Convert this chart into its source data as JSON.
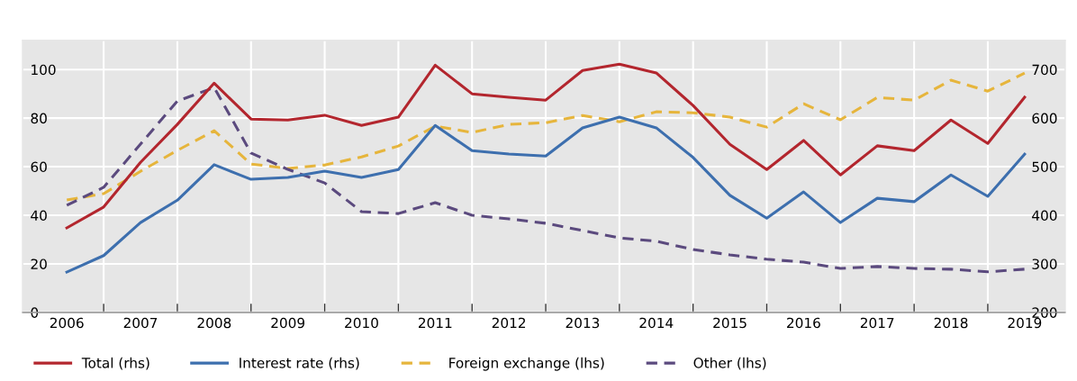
{
  "chart_data": {
    "type": "line",
    "x": [
      2006.5,
      2007,
      2007.5,
      2008,
      2008.5,
      2009,
      2009.5,
      2010,
      2010.5,
      2011,
      2011.5,
      2012,
      2012.5,
      2013,
      2013.5,
      2014,
      2014.5,
      2015,
      2015.5,
      2016,
      2016.5,
      2017,
      2017.5,
      2018,
      2018.5,
      2019,
      2019.5
    ],
    "series": [
      {
        "name": "Total (rhs)",
        "color": "#b3262e",
        "axis": "y2",
        "line_style": "solid",
        "values": [
          374,
          417,
          509,
          587,
          672,
          598,
          596,
          606,
          585,
          602,
          709,
          650,
          643,
          637,
          698,
          711,
          693,
          626,
          546,
          494,
          554,
          483,
          543,
          533,
          596,
          548,
          643
        ]
      },
      {
        "name": "Interest rate (rhs)",
        "color": "#3d6fae",
        "axis": "y2",
        "line_style": "solid",
        "values": [
          283,
          317,
          385,
          431,
          504,
          474,
          478,
          491,
          478,
          494,
          585,
          533,
          526,
          522,
          580,
          602,
          580,
          519,
          441,
          394,
          448,
          385,
          435,
          428,
          483,
          439,
          526
        ]
      },
      {
        "name": "Foreign exchange (lhs)",
        "color": "#e6b53c",
        "line_style": "dashed",
        "values": [
          46.3,
          48.9,
          58.1,
          66.7,
          74.8,
          61.1,
          59.3,
          60.7,
          64,
          68.5,
          76.7,
          74.1,
          77.4,
          78.1,
          81.1,
          78.5,
          82.6,
          82.2,
          80.4,
          76.3,
          85.9,
          79.3,
          88.5,
          87.4,
          95.6,
          91.1,
          98.5
        ]
      },
      {
        "name": "Other (lhs)",
        "color": "#5b4a7e",
        "line_style": "dashed",
        "values": [
          44.1,
          51.5,
          69.3,
          87,
          92.6,
          65.6,
          58.9,
          53.3,
          41.5,
          40.7,
          45.2,
          40,
          38.5,
          36.7,
          33.7,
          30.7,
          29.3,
          25.9,
          23.7,
          21.9,
          20.7,
          18.1,
          18.9,
          18.1,
          17.8,
          16.7,
          17.8
        ]
      }
    ],
    "xlim": [
      2005.9,
      2020.05
    ],
    "xticks": [
      {
        "value": 2006.5,
        "label": "2006"
      },
      {
        "value": 2007,
        "label": null
      },
      {
        "value": 2007.5,
        "label": "2007"
      },
      {
        "value": 2008,
        "label": null
      },
      {
        "value": 2008.5,
        "label": "2008"
      },
      {
        "value": 2009,
        "label": null
      },
      {
        "value": 2009.5,
        "label": "2009"
      },
      {
        "value": 2010,
        "label": null
      },
      {
        "value": 2010.5,
        "label": "2010"
      },
      {
        "value": 2011,
        "label": null
      },
      {
        "value": 2011.5,
        "label": "2011"
      },
      {
        "value": 2012,
        "label": null
      },
      {
        "value": 2012.5,
        "label": "2012"
      },
      {
        "value": 2013,
        "label": null
      },
      {
        "value": 2013.5,
        "label": "2013"
      },
      {
        "value": 2014,
        "label": null
      },
      {
        "value": 2014.5,
        "label": "2014"
      },
      {
        "value": 2015,
        "label": null
      },
      {
        "value": 2015.5,
        "label": "2015"
      },
      {
        "value": 2016,
        "label": null
      },
      {
        "value": 2016.5,
        "label": "2016"
      },
      {
        "value": 2017,
        "label": null
      },
      {
        "value": 2017.5,
        "label": "2017"
      },
      {
        "value": 2018,
        "label": null
      },
      {
        "value": 2018.5,
        "label": "2018"
      },
      {
        "value": 2019,
        "label": null
      },
      {
        "value": 2019.5,
        "label": "2019"
      }
    ],
    "ylim": [
      0,
      112
    ],
    "yticks": [
      0,
      20,
      40,
      60,
      80,
      100
    ],
    "y2lim": [
      200,
      760
    ],
    "y2ticks": [
      200,
      300,
      400,
      500,
      600,
      700
    ],
    "grid": true,
    "legend": "bottom",
    "marker": "none"
  }
}
